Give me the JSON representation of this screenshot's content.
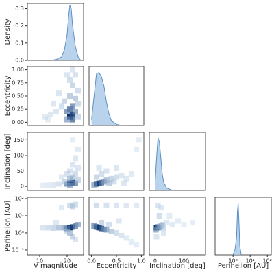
{
  "chart_data": [
    {
      "type": "kde",
      "ylabel": "Density",
      "color": "#a8c8e8",
      "line_color": "#5b8fc4",
      "x": [
        14,
        16,
        18,
        19,
        20,
        20.5,
        21,
        21.5,
        22,
        23,
        24,
        25
      ],
      "values": [
        0,
        0.005,
        0.02,
        0.06,
        0.15,
        0.25,
        0.32,
        0.3,
        0.2,
        0.08,
        0.02,
        0
      ],
      "xlim": [
        5.5,
        26
      ],
      "ylim": [
        0,
        0.33
      ],
      "yticks": [
        {
          "value": 0,
          "label": "0.0"
        },
        0.1,
        0.2,
        0.3
      ]
    },
    {
      "type": "hist2d",
      "ylabel": "Eccentricity",
      "color": "#08306b",
      "x": [
        21,
        22,
        21,
        22,
        20,
        23,
        21,
        22,
        19,
        18,
        16,
        14,
        12,
        20,
        22,
        24,
        21,
        23,
        17,
        24,
        22,
        20,
        15,
        13,
        23,
        24
      ],
      "y": [
        0.1,
        0.15,
        0.25,
        0.3,
        0.2,
        0.2,
        0.5,
        0.7,
        0.4,
        0.3,
        0.2,
        0.15,
        0.1,
        0.9,
        1.0,
        0.6,
        0.8,
        0.45,
        0.55,
        0.1,
        0.05,
        0.05,
        0.35,
        0.05,
        0.9,
        0.35
      ],
      "counts": [
        90,
        80,
        60,
        50,
        50,
        40,
        25,
        20,
        20,
        15,
        10,
        8,
        5,
        10,
        10,
        15,
        15,
        25,
        10,
        20,
        60,
        40,
        8,
        4,
        12,
        18
      ],
      "xlim": [
        5.5,
        26
      ],
      "ylim": [
        -0.06,
        1.06
      ],
      "yticks": [
        {
          "value": 0,
          "label": "0.00"
        },
        {
          "value": 0.25,
          "label": "0.25"
        },
        {
          "value": 0.5,
          "label": "0.50"
        },
        {
          "value": 0.75,
          "label": "0.75"
        },
        {
          "value": 1,
          "label": "1.00"
        }
      ]
    },
    {
      "type": "kde",
      "color": "#a8c8e8",
      "line_color": "#5b8fc4",
      "x": [
        0,
        0.05,
        0.1,
        0.15,
        0.2,
        0.25,
        0.3,
        0.35,
        0.4,
        0.5,
        0.6
      ],
      "values": [
        0.5,
        2.5,
        4.5,
        4.6,
        4.2,
        3.4,
        2,
        1,
        0.4,
        0.1,
        0
      ],
      "xlim": [
        -0.05,
        1.05
      ]
    },
    {
      "type": "hist2d",
      "ylabel": "Inclination [deg]",
      "color": "#08306b",
      "x": [
        21,
        22,
        20,
        23,
        21,
        22,
        19,
        17,
        15,
        13,
        11,
        21,
        22,
        23,
        24,
        20,
        22,
        24,
        18,
        23,
        21,
        24
      ],
      "y": [
        10,
        12,
        8,
        10,
        25,
        30,
        15,
        8,
        5,
        4,
        3,
        50,
        70,
        90,
        120,
        40,
        150,
        60,
        30,
        40,
        3,
        20
      ],
      "counts": [
        90,
        80,
        50,
        50,
        30,
        25,
        20,
        12,
        8,
        5,
        3,
        12,
        10,
        8,
        6,
        12,
        4,
        10,
        8,
        15,
        40,
        20
      ],
      "xlim": [
        5.5,
        26
      ],
      "ylim": [
        -13,
        175
      ],
      "yticks": [
        0,
        50,
        100,
        150
      ]
    },
    {
      "type": "hist2d",
      "color": "#08306b",
      "x": [
        0.1,
        0.15,
        0.2,
        0.05,
        0.25,
        0.3,
        0.4,
        0.5,
        0.6,
        0.7,
        0.8,
        0.9,
        0.1,
        0.2,
        0.3,
        0.5,
        0.35,
        0.15,
        0.45,
        0.95,
        0.65
      ],
      "y": [
        8,
        10,
        12,
        5,
        15,
        20,
        25,
        30,
        35,
        25,
        40,
        120,
        30,
        40,
        50,
        60,
        10,
        60,
        15,
        150,
        10
      ],
      "counts": [
        90,
        80,
        60,
        40,
        40,
        30,
        20,
        15,
        10,
        8,
        6,
        4,
        20,
        15,
        12,
        8,
        25,
        8,
        15,
        3,
        8
      ],
      "xlim": [
        -0.05,
        1.05
      ],
      "ylim": [
        -13,
        175
      ]
    },
    {
      "type": "kde",
      "color": "#a8c8e8",
      "line_color": "#5b8fc4",
      "x": [
        0,
        5,
        10,
        15,
        20,
        25,
        30,
        40,
        60
      ],
      "values": [
        0.01,
        0.04,
        0.065,
        0.06,
        0.04,
        0.02,
        0.01,
        0.003,
        0
      ],
      "xlim": [
        -20,
        175
      ]
    },
    {
      "type": "hist2d",
      "ylabel": "Perihelion [AU]",
      "xlabel": "V magnitude",
      "color": "#08306b",
      "xlog": false,
      "ylog": true,
      "x": [
        21,
        22,
        20,
        23,
        19,
        17,
        15,
        13,
        11,
        21,
        22,
        23,
        18,
        24,
        21,
        22,
        20,
        23,
        16
      ],
      "y": [
        2,
        2.2,
        1.8,
        2.5,
        2,
        2,
        1.9,
        2,
        2,
        40,
        35,
        45,
        30,
        3,
        1,
        0.6,
        1.2,
        0.4,
        4
      ],
      "counts": [
        90,
        80,
        60,
        50,
        40,
        30,
        20,
        15,
        10,
        15,
        20,
        15,
        6,
        40,
        30,
        20,
        15,
        10,
        8
      ],
      "xlim": [
        5.5,
        26
      ],
      "ylim": [
        0.052,
        120
      ],
      "xticks": [
        10,
        20
      ],
      "yticks": [
        {
          "value": 0.1,
          "label": "10⁻¹"
        },
        {
          "value": 1,
          "label": "10⁰"
        },
        {
          "value": 10,
          "label": "10¹"
        },
        {
          "value": 100,
          "label": "10²"
        }
      ]
    },
    {
      "type": "hist2d",
      "xlabel": "Eccentricity",
      "color": "#08306b",
      "ylog": true,
      "x": [
        0.1,
        0.15,
        0.2,
        0.05,
        0.25,
        0.3,
        0.4,
        0.5,
        0.6,
        0.7,
        0.8,
        0.9,
        0.1,
        0.3,
        0.5,
        0.7,
        0.9,
        0.2,
        0.35,
        0.55
      ],
      "y": [
        2.2,
        2,
        1.8,
        2.5,
        1.6,
        1.5,
        1.2,
        1,
        0.7,
        0.5,
        0.3,
        0.2,
        40,
        40,
        40,
        40,
        40,
        4,
        3,
        5
      ],
      "counts": [
        90,
        85,
        70,
        50,
        50,
        40,
        25,
        15,
        10,
        6,
        4,
        3,
        15,
        12,
        10,
        8,
        6,
        20,
        15,
        8
      ],
      "xlim": [
        -0.05,
        1.05
      ],
      "ylim": [
        0.052,
        120
      ],
      "xticks": [
        {
          "value": 0,
          "label": "0.0"
        },
        0.5,
        {
          "value": 1,
          "label": "1.0"
        }
      ]
    },
    {
      "type": "hist2d",
      "xlabel": "Inclination [deg]",
      "color": "#08306b",
      "ylog": true,
      "x": [
        5,
        10,
        15,
        3,
        20,
        25,
        30,
        40,
        60,
        80,
        100,
        130,
        10,
        20,
        5,
        30,
        50,
        15
      ],
      "y": [
        2,
        2.2,
        2,
        1.5,
        2.5,
        3,
        2,
        4,
        3,
        5,
        3,
        4,
        40,
        30,
        0.6,
        1,
        10,
        10
      ],
      "counts": [
        90,
        60,
        40,
        40,
        30,
        20,
        15,
        8,
        5,
        4,
        3,
        2,
        10,
        8,
        10,
        8,
        4,
        15
      ],
      "xlim": [
        -20,
        175
      ],
      "ylim": [
        0.052,
        120
      ],
      "xticks": [
        0,
        100
      ]
    },
    {
      "type": "kde",
      "xlabel": "Perihelion [AU]",
      "color": "#a8c8e8",
      "line_color": "#5b8fc4",
      "xlog": true,
      "x": [
        1,
        1.3,
        1.6,
        1.8,
        2,
        2.2,
        2.5,
        3
      ],
      "values": [
        0,
        0.3,
        1,
        2.5,
        3,
        2,
        0.5,
        0
      ],
      "xlim": [
        0.09,
        170
      ],
      "xticks": [
        {
          "value": 1,
          "label": "10⁰"
        },
        {
          "value": 10,
          "label": "10¹"
        },
        {
          "value": 100,
          "label": "10²"
        }
      ]
    }
  ]
}
